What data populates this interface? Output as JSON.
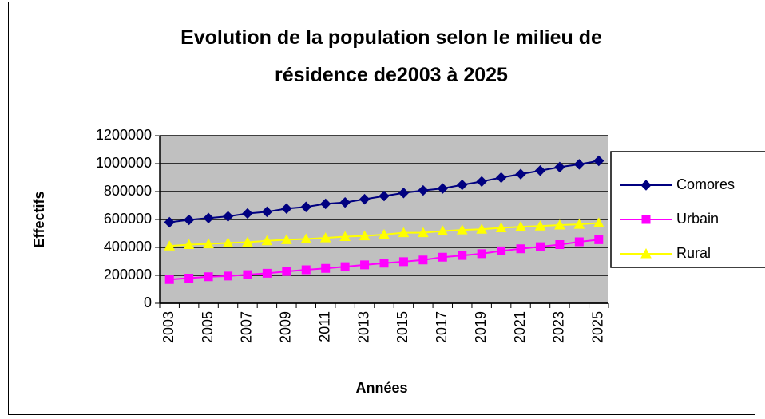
{
  "chart_data": {
    "type": "line",
    "title": "Evolution de la population selon le milieu de résidence de2003 à 2025",
    "x_label": "Années",
    "y_label": "Effectifs",
    "categories": [
      "2003",
      null,
      "2005",
      null,
      "2007",
      null,
      "2009",
      null,
      "2011",
      null,
      "2013",
      null,
      "2015",
      null,
      "2017",
      null,
      "2019",
      null,
      "2021",
      null,
      "2023",
      null,
      "2025"
    ],
    "series": [
      {
        "name": "Comores",
        "color": "#000080",
        "marker": "diamond",
        "values": [
          580000,
          597000,
          610000,
          622000,
          643000,
          655000,
          678000,
          690000,
          712000,
          722000,
          745000,
          768000,
          790000,
          808000,
          822000,
          848000,
          872000,
          900000,
          925000,
          950000,
          975000,
          995000,
          1020000
        ]
      },
      {
        "name": "Urbain",
        "color": "#ff00ff",
        "marker": "square",
        "values": [
          170000,
          180000,
          190000,
          195000,
          205000,
          215000,
          228000,
          240000,
          250000,
          262000,
          275000,
          287000,
          298000,
          310000,
          330000,
          342000,
          355000,
          375000,
          390000,
          405000,
          420000,
          440000,
          455000
        ]
      },
      {
        "name": "Rural",
        "color": "#ffff00",
        "marker": "triangle",
        "values": [
          410000,
          420000,
          425000,
          432000,
          437000,
          447000,
          455000,
          460000,
          468000,
          477000,
          482000,
          492000,
          505000,
          505000,
          517000,
          525000,
          530000,
          540000,
          548000,
          553000,
          560000,
          565000,
          575000
        ]
      }
    ],
    "ylim": [
      0,
      1200000
    ],
    "yticks": [
      0,
      200000,
      400000,
      600000,
      800000,
      1000000,
      1200000
    ],
    "grid": true,
    "legend": "right",
    "plot_background": "#c0c0c0"
  }
}
